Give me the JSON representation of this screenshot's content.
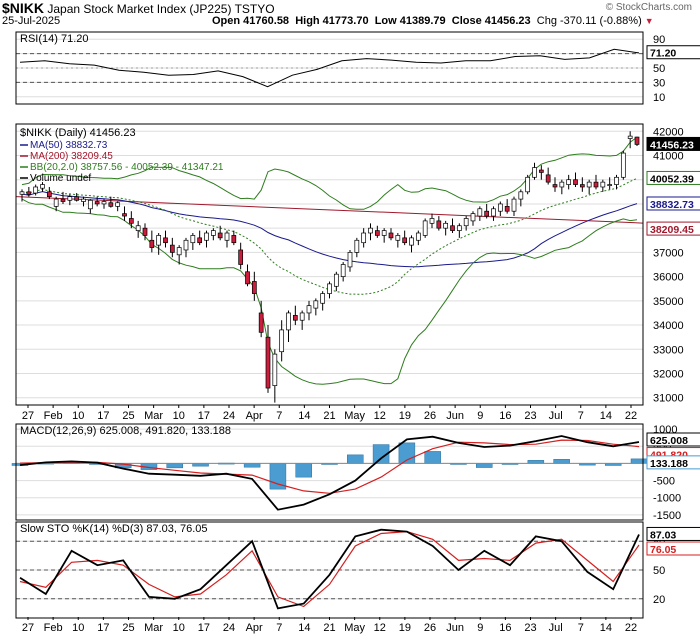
{
  "header": {
    "symbol": "$NIKK",
    "name": "Japan Stock Market Index (JP225)",
    "exchange": "TSTYO",
    "date": "25-Jul-2025",
    "open": "Open 41760.58",
    "high": "High 41773.70",
    "low": "Low 41389.79",
    "close": "Close 41456.23",
    "change": "Chg -370.11 (-0.88%)",
    "credit": "© StockCharts.com"
  },
  "colors": {
    "up": "#ffffff",
    "down": "#cc1d3c",
    "ma50": "#1a1a8c",
    "ma200": "#a0182c",
    "bb": "#2e7d1e",
    "macd_hist": "#4b9cd0",
    "signal": "#d42020",
    "rsi_fill": "#8ca88c",
    "rsi_low_fill": "#a06b6b"
  },
  "chart_data": [
    {
      "type": "line",
      "title": "RSI(14) 71.20",
      "yticks": [
        10,
        30,
        50,
        70,
        90
      ],
      "ylim": [
        0,
        100
      ],
      "levels": [
        70,
        30
      ],
      "last_label": "71.20",
      "x": [
        "Jan 27",
        "Feb 3",
        "Feb 10",
        "Feb 17",
        "Feb 25",
        "Mar 3",
        "Mar 10",
        "Mar 17",
        "Mar 24",
        "Apr 1",
        "Apr 7",
        "Apr 14",
        "Apr 21",
        "May 1",
        "May 12",
        "May 19",
        "May 26",
        "Jun 2",
        "Jun 9",
        "Jun 16",
        "Jun 23",
        "Jun 30",
        "Jul 7",
        "Jul 14",
        "Jul 22",
        "Jul 25"
      ],
      "values": [
        58,
        60,
        56,
        54,
        47,
        44,
        40,
        41,
        46,
        38,
        24,
        40,
        48,
        60,
        63,
        61,
        58,
        57,
        60,
        60,
        66,
        67,
        62,
        64,
        76,
        71
      ]
    },
    {
      "type": "candlestick",
      "title": "$NIKK (Daily) 41456.23",
      "legend": [
        "MA(50) 38832.73",
        "MA(200) 38209.45",
        "BB(20,2.0) 38757.56 - 40052.39 - 41347.21",
        "Volume undef"
      ],
      "yticks": [
        31000,
        32000,
        33000,
        34000,
        35000,
        36000,
        37000,
        38000,
        39000,
        40000,
        41000,
        42000
      ],
      "ylim": [
        30700,
        42300
      ],
      "price_labels": [
        "41456.23",
        "40052.39",
        "38832.73",
        "38209.45"
      ],
      "xticks": [
        "27",
        "Feb",
        "10",
        "17",
        "25",
        "Mar",
        "10",
        "17",
        "24",
        "Apr",
        "7",
        "14",
        "21",
        "May",
        "12",
        "19",
        "26",
        "Jun",
        "9",
        "16",
        "23",
        "Jul",
        "7",
        "14",
        "22"
      ],
      "candles": [
        [
          39400,
          39600,
          39100,
          39500
        ],
        [
          39500,
          39700,
          39300,
          39400
        ],
        [
          39450,
          39800,
          39350,
          39700
        ],
        [
          39650,
          39900,
          39500,
          39800
        ],
        [
          39500,
          39700,
          39200,
          39300
        ],
        [
          38900,
          39300,
          38700,
          39200
        ],
        [
          39200,
          39500,
          39000,
          39100
        ],
        [
          39150,
          39400,
          38950,
          39300
        ],
        [
          39300,
          39450,
          39100,
          39150
        ],
        [
          39100,
          39300,
          38900,
          39200
        ],
        [
          38800,
          39200,
          38600,
          39150
        ],
        [
          39100,
          39300,
          38900,
          39000
        ],
        [
          39000,
          39200,
          38800,
          39100
        ],
        [
          39050,
          39300,
          38850,
          38900
        ],
        [
          38900,
          39100,
          38700,
          39050
        ],
        [
          38600,
          38900,
          38300,
          38500
        ],
        [
          38400,
          38700,
          38000,
          38200
        ],
        [
          37900,
          38300,
          37600,
          38100
        ],
        [
          38000,
          38200,
          37500,
          37700
        ],
        [
          37500,
          37900,
          37000,
          37200
        ],
        [
          37300,
          37800,
          36900,
          37700
        ],
        [
          37600,
          37900,
          37200,
          37400
        ],
        [
          37300,
          37600,
          36800,
          37000
        ],
        [
          36900,
          37300,
          36500,
          37200
        ],
        [
          37100,
          37600,
          36800,
          37500
        ],
        [
          37400,
          37800,
          37100,
          37700
        ],
        [
          37600,
          37900,
          37300,
          37400
        ],
        [
          37500,
          37900,
          37200,
          37800
        ],
        [
          37700,
          38000,
          37500,
          37900
        ],
        [
          37800,
          38100,
          37500,
          37600
        ],
        [
          37500,
          37900,
          37200,
          37800
        ],
        [
          37700,
          37900,
          37300,
          37400
        ],
        [
          37100,
          37400,
          36300,
          36500
        ],
        [
          36200,
          36500,
          35600,
          35700
        ],
        [
          35800,
          36200,
          35000,
          35300
        ],
        [
          34500,
          35000,
          33500,
          33700
        ],
        [
          33500,
          34000,
          31200,
          31400
        ],
        [
          31500,
          33000,
          30800,
          32800
        ],
        [
          32900,
          34200,
          32500,
          33800
        ],
        [
          33800,
          34600,
          33300,
          34500
        ],
        [
          34400,
          34800,
          34000,
          34200
        ],
        [
          34200,
          34600,
          33800,
          34500
        ],
        [
          34500,
          35000,
          34200,
          34800
        ],
        [
          34700,
          35100,
          34400,
          35000
        ],
        [
          34900,
          35400,
          34600,
          35300
        ],
        [
          35300,
          35800,
          35100,
          35700
        ],
        [
          35600,
          36200,
          35400,
          36100
        ],
        [
          36000,
          36600,
          35800,
          36500
        ],
        [
          36400,
          37100,
          36200,
          37000
        ],
        [
          37000,
          37600,
          36800,
          37500
        ],
        [
          37400,
          38000,
          37200,
          37800
        ],
        [
          37800,
          38200,
          37500,
          38000
        ],
        [
          37900,
          38100,
          37600,
          37700
        ],
        [
          37700,
          38000,
          37400,
          37900
        ],
        [
          37800,
          38000,
          37500,
          37600
        ],
        [
          37500,
          37800,
          37200,
          37700
        ],
        [
          37600,
          37900,
          37300,
          37400
        ],
        [
          37300,
          37700,
          37000,
          37600
        ],
        [
          37500,
          37900,
          37300,
          37800
        ],
        [
          37700,
          38400,
          37600,
          38300
        ],
        [
          38200,
          38600,
          38000,
          38400
        ],
        [
          38300,
          38500,
          37900,
          38000
        ],
        [
          38000,
          38300,
          37700,
          38200
        ],
        [
          38100,
          38400,
          37800,
          37900
        ],
        [
          37900,
          38200,
          37600,
          38100
        ],
        [
          38100,
          38500,
          37900,
          38400
        ],
        [
          38300,
          38700,
          38100,
          38600
        ],
        [
          38500,
          38900,
          38300,
          38800
        ],
        [
          38700,
          39000,
          38400,
          38500
        ],
        [
          38500,
          38900,
          38300,
          38800
        ],
        [
          38700,
          39100,
          38500,
          39000
        ],
        [
          38900,
          39200,
          38600,
          38700
        ],
        [
          38700,
          39300,
          38500,
          39200
        ],
        [
          39200,
          39600,
          38900,
          39500
        ],
        [
          39500,
          40200,
          39400,
          40100
        ],
        [
          40100,
          40700,
          40000,
          40500
        ],
        [
          40400,
          40600,
          40000,
          40300
        ],
        [
          40200,
          40500,
          39800,
          39900
        ],
        [
          39800,
          40100,
          39500,
          39700
        ],
        [
          39700,
          40000,
          39400,
          39900
        ],
        [
          39800,
          40200,
          39600,
          40000
        ],
        [
          40000,
          40300,
          39700,
          39800
        ],
        [
          39800,
          40100,
          39500,
          39700
        ],
        [
          39700,
          40000,
          39400,
          39900
        ],
        [
          39900,
          40200,
          39600,
          39700
        ],
        [
          39700,
          40000,
          39500,
          39900
        ],
        [
          39800,
          40100,
          39600,
          39800
        ],
        [
          39800,
          40200,
          39600,
          40100
        ],
        [
          40100,
          41200,
          40000,
          41100
        ],
        [
          41700,
          42000,
          41300,
          41800
        ],
        [
          41760.58,
          41773.7,
          41389.79,
          41456.23
        ]
      ]
    },
    {
      "type": "line",
      "title": "MACD(12,26,9) 625.008, 491.820, 133.188",
      "yticks": [
        -1500,
        -1000,
        -500,
        0,
        500,
        1000
      ],
      "ylim": [
        -1650,
        1150
      ],
      "last_labels": [
        "625.008",
        "491.820",
        "133.188"
      ],
      "series": [
        {
          "name": "MACD(12,26,9)",
          "values": [
            -50,
            30,
            60,
            20,
            -150,
            -300,
            -330,
            -360,
            -300,
            -450,
            -1350,
            -1200,
            -900,
            -500,
            150,
            700,
            780,
            600,
            480,
            520,
            650,
            800,
            620,
            500,
            625
          ]
        },
        {
          "name": "signal",
          "values": [
            10,
            20,
            35,
            30,
            -20,
            -120,
            -200,
            -280,
            -310,
            -340,
            -600,
            -800,
            -870,
            -750,
            -400,
            100,
            430,
            620,
            600,
            550,
            560,
            680,
            670,
            560,
            492
          ]
        }
      ]
    },
    {
      "type": "line",
      "title": "Slow STO %K(14) %D(3) 87.03, 76.05",
      "yticks": [
        20,
        50,
        80
      ],
      "ylim": [
        0,
        100
      ],
      "levels": [
        80,
        50,
        20
      ],
      "last_labels": [
        "87.03",
        "76.05"
      ],
      "series": [
        {
          "name": "%K(14)",
          "values": [
            42,
            25,
            70,
            55,
            60,
            22,
            20,
            30,
            55,
            80,
            10,
            15,
            45,
            85,
            92,
            90,
            75,
            50,
            70,
            55,
            85,
            80,
            48,
            30,
            87
          ]
        },
        {
          "name": "%D(3)",
          "values": [
            38,
            32,
            58,
            60,
            55,
            35,
            22,
            25,
            45,
            70,
            22,
            12,
            35,
            75,
            88,
            90,
            82,
            60,
            62,
            60,
            78,
            82,
            60,
            38,
            76
          ]
        }
      ]
    }
  ]
}
